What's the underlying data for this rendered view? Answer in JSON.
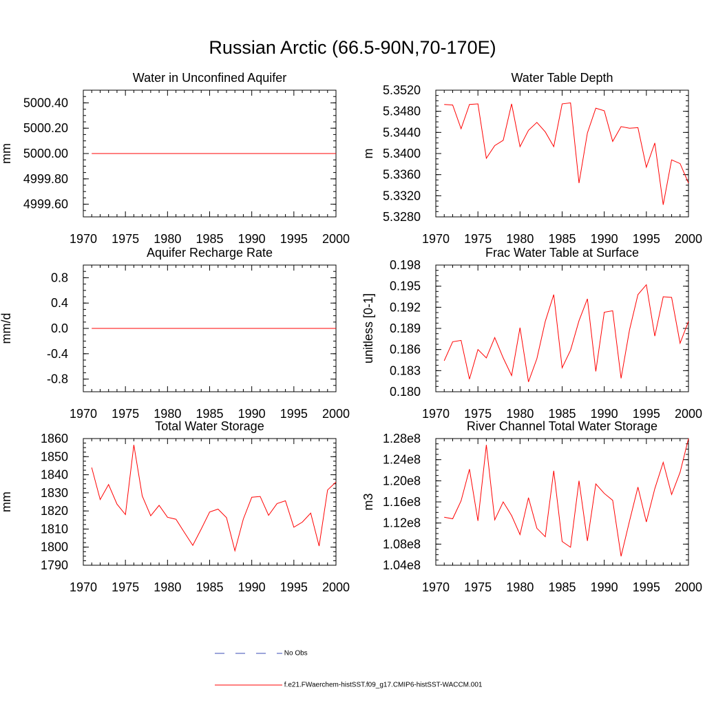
{
  "title": "Russian Arctic (66.5-90N,70-170E)",
  "legend": [
    {
      "label": "No Obs",
      "color": "#3a4bb5",
      "style": "dashed"
    },
    {
      "label": "f.e21.FWaerchem-histSST.f09_g17.CMIP6-histSST-WACCM.001",
      "color": "#ff0000",
      "style": "solid"
    }
  ],
  "chart_data": [
    {
      "type": "line",
      "title": "Water in Unconfined Aquifer",
      "ylabel": "mm",
      "xlim": [
        1970,
        2000
      ],
      "ylim": [
        4999.5,
        5000.5
      ],
      "xticks": [
        "1970",
        "1975",
        "1980",
        "1985",
        "1990",
        "1995",
        "2000"
      ],
      "yticks": [
        "4999.60",
        "4999.80",
        "5000.00",
        "5000.20",
        "5000.40"
      ],
      "series": [
        {
          "color": "#ff0000",
          "x": [
            1971,
            1972,
            1973,
            1974,
            1975,
            1976,
            1977,
            1978,
            1979,
            1980,
            1981,
            1982,
            1983,
            1984,
            1985,
            1986,
            1987,
            1988,
            1989,
            1990,
            1991,
            1992,
            1993,
            1994,
            1995,
            1996,
            1997,
            1998,
            1999,
            2000
          ],
          "values": [
            5000,
            5000,
            5000,
            5000,
            5000,
            5000,
            5000,
            5000,
            5000,
            5000,
            5000,
            5000,
            5000,
            5000,
            5000,
            5000,
            5000,
            5000,
            5000,
            5000,
            5000,
            5000,
            5000,
            5000,
            5000,
            5000,
            5000,
            5000,
            5000,
            5000
          ]
        }
      ]
    },
    {
      "type": "line",
      "title": "Water Table Depth",
      "ylabel": "m",
      "xlim": [
        1970,
        2000
      ],
      "ylim": [
        5.328,
        5.352
      ],
      "xticks": [
        "1970",
        "1975",
        "1980",
        "1985",
        "1990",
        "1995",
        "2000"
      ],
      "yticks": [
        "5.3280",
        "5.3320",
        "5.3360",
        "5.3400",
        "5.3440",
        "5.3480",
        "5.3520"
      ],
      "series": [
        {
          "color": "#ff0000",
          "x": [
            1971,
            1972,
            1973,
            1974,
            1975,
            1976,
            1977,
            1978,
            1979,
            1980,
            1981,
            1982,
            1983,
            1984,
            1985,
            1986,
            1987,
            1988,
            1989,
            1990,
            1991,
            1992,
            1993,
            1994,
            1995,
            1996,
            1997,
            1998,
            1999,
            2000
          ],
          "values": [
            5.3493,
            5.3492,
            5.3447,
            5.3493,
            5.3494,
            5.3391,
            5.3415,
            5.3425,
            5.3494,
            5.3413,
            5.3444,
            5.3459,
            5.3441,
            5.3413,
            5.3494,
            5.3496,
            5.3344,
            5.3439,
            5.3486,
            5.3481,
            5.3423,
            5.3451,
            5.3448,
            5.3449,
            5.3374,
            5.342,
            5.3303,
            5.3388,
            5.3381,
            5.3344
          ]
        }
      ]
    },
    {
      "type": "line",
      "title": "Aquifer Recharge Rate",
      "ylabel": "mm/d",
      "xlim": [
        1970,
        2000
      ],
      "ylim": [
        -1.0,
        1.0
      ],
      "xticks": [
        "1970",
        "1975",
        "1980",
        "1985",
        "1990",
        "1995",
        "2000"
      ],
      "yticks": [
        "-0.8",
        "-0.4",
        "0.0",
        "0.4",
        "0.8"
      ],
      "series": [
        {
          "color": "#ff0000",
          "x": [
            1971,
            1972,
            1973,
            1974,
            1975,
            1976,
            1977,
            1978,
            1979,
            1980,
            1981,
            1982,
            1983,
            1984,
            1985,
            1986,
            1987,
            1988,
            1989,
            1990,
            1991,
            1992,
            1993,
            1994,
            1995,
            1996,
            1997,
            1998,
            1999,
            2000
          ],
          "values": [
            0,
            0,
            0,
            0,
            0,
            0,
            0,
            0,
            0,
            0,
            0,
            0,
            0,
            0,
            0,
            0,
            0,
            0,
            0,
            0,
            0,
            0,
            0,
            0,
            0,
            0,
            0,
            0,
            0,
            0
          ]
        }
      ]
    },
    {
      "type": "line",
      "title": "Frac Water Table at Surface",
      "ylabel": "unitless [0-1]",
      "xlim": [
        1970,
        2000
      ],
      "ylim": [
        0.18,
        0.198
      ],
      "xticks": [
        "1970",
        "1975",
        "1980",
        "1985",
        "1990",
        "1995",
        "2000"
      ],
      "yticks": [
        "0.180",
        "0.183",
        "0.186",
        "0.189",
        "0.192",
        "0.195",
        "0.198"
      ],
      "series": [
        {
          "color": "#ff0000",
          "x": [
            1971,
            1972,
            1973,
            1974,
            1975,
            1976,
            1977,
            1978,
            1979,
            1980,
            1981,
            1982,
            1983,
            1984,
            1985,
            1986,
            1987,
            1988,
            1989,
            1990,
            1991,
            1992,
            1993,
            1994,
            1995,
            1996,
            1997,
            1998,
            1999,
            2000
          ],
          "values": [
            0.1844,
            0.1871,
            0.1873,
            0.1818,
            0.186,
            0.1848,
            0.1877,
            0.1848,
            0.1823,
            0.1891,
            0.1814,
            0.1847,
            0.19,
            0.1938,
            0.1834,
            0.1859,
            0.1901,
            0.1932,
            0.1829,
            0.1913,
            0.1915,
            0.1819,
            0.1888,
            0.1938,
            0.1952,
            0.1879,
            0.1935,
            0.1934,
            0.1869,
            0.19
          ]
        }
      ]
    },
    {
      "type": "line",
      "title": "Total Water Storage",
      "ylabel": "mm",
      "xlim": [
        1970,
        2000
      ],
      "ylim": [
        1790,
        1860
      ],
      "xticks": [
        "1970",
        "1975",
        "1980",
        "1985",
        "1990",
        "1995",
        "2000"
      ],
      "yticks": [
        "1790",
        "1800",
        "1810",
        "1820",
        "1830",
        "1840",
        "1850",
        "1860"
      ],
      "series": [
        {
          "color": "#ff0000",
          "x": [
            1971,
            1972,
            1973,
            1974,
            1975,
            1976,
            1977,
            1978,
            1979,
            1980,
            1981,
            1982,
            1983,
            1984,
            1985,
            1986,
            1987,
            1988,
            1989,
            1990,
            1991,
            1992,
            1993,
            1994,
            1995,
            1996,
            1997,
            1998,
            1999,
            2000
          ],
          "values": [
            1844.0,
            1826.3,
            1834.6,
            1823.8,
            1818.0,
            1856.5,
            1828.3,
            1817.3,
            1823.1,
            1816.5,
            1815.4,
            1808.1,
            1801.0,
            1810.0,
            1819.4,
            1821.0,
            1816.3,
            1798.0,
            1815.5,
            1827.6,
            1828.0,
            1817.6,
            1824.1,
            1825.6,
            1811.0,
            1813.8,
            1818.8,
            1800.6,
            1831.6,
            1836.0
          ]
        }
      ]
    },
    {
      "type": "line",
      "title": "River Channel Total Water Storage",
      "ylabel": "m3",
      "xlim": [
        1970,
        2000
      ],
      "ylim": [
        104000000.0,
        128000000.0
      ],
      "xticks": [
        "1970",
        "1975",
        "1980",
        "1985",
        "1990",
        "1995",
        "2000"
      ],
      "yticks": [
        "1.04e8",
        "1.08e8",
        "1.12e8",
        "1.16e8",
        "1.20e8",
        "1.24e8",
        "1.28e8"
      ],
      "series": [
        {
          "color": "#ff0000",
          "x": [
            1971,
            1972,
            1973,
            1974,
            1975,
            1976,
            1977,
            1978,
            1979,
            1980,
            1981,
            1982,
            1983,
            1984,
            1985,
            1986,
            1987,
            1988,
            1989,
            1990,
            1991,
            1992,
            1993,
            1994,
            1995,
            1996,
            1997,
            1998,
            1999,
            2000
          ],
          "values": [
            113100000.0,
            112800000.0,
            116200000.0,
            122200000.0,
            112400000.0,
            126800000.0,
            112600000.0,
            116000000.0,
            113400000.0,
            109800000.0,
            116800000.0,
            111000000.0,
            109400000.0,
            121900000.0,
            108500000.0,
            107400000.0,
            120000000.0,
            108600000.0,
            119400000.0,
            117600000.0,
            116300000.0,
            105700000.0,
            112400000.0,
            118800000.0,
            112200000.0,
            118500000.0,
            123500000.0,
            117400000.0,
            121600000.0,
            128000000.0
          ]
        }
      ]
    }
  ]
}
